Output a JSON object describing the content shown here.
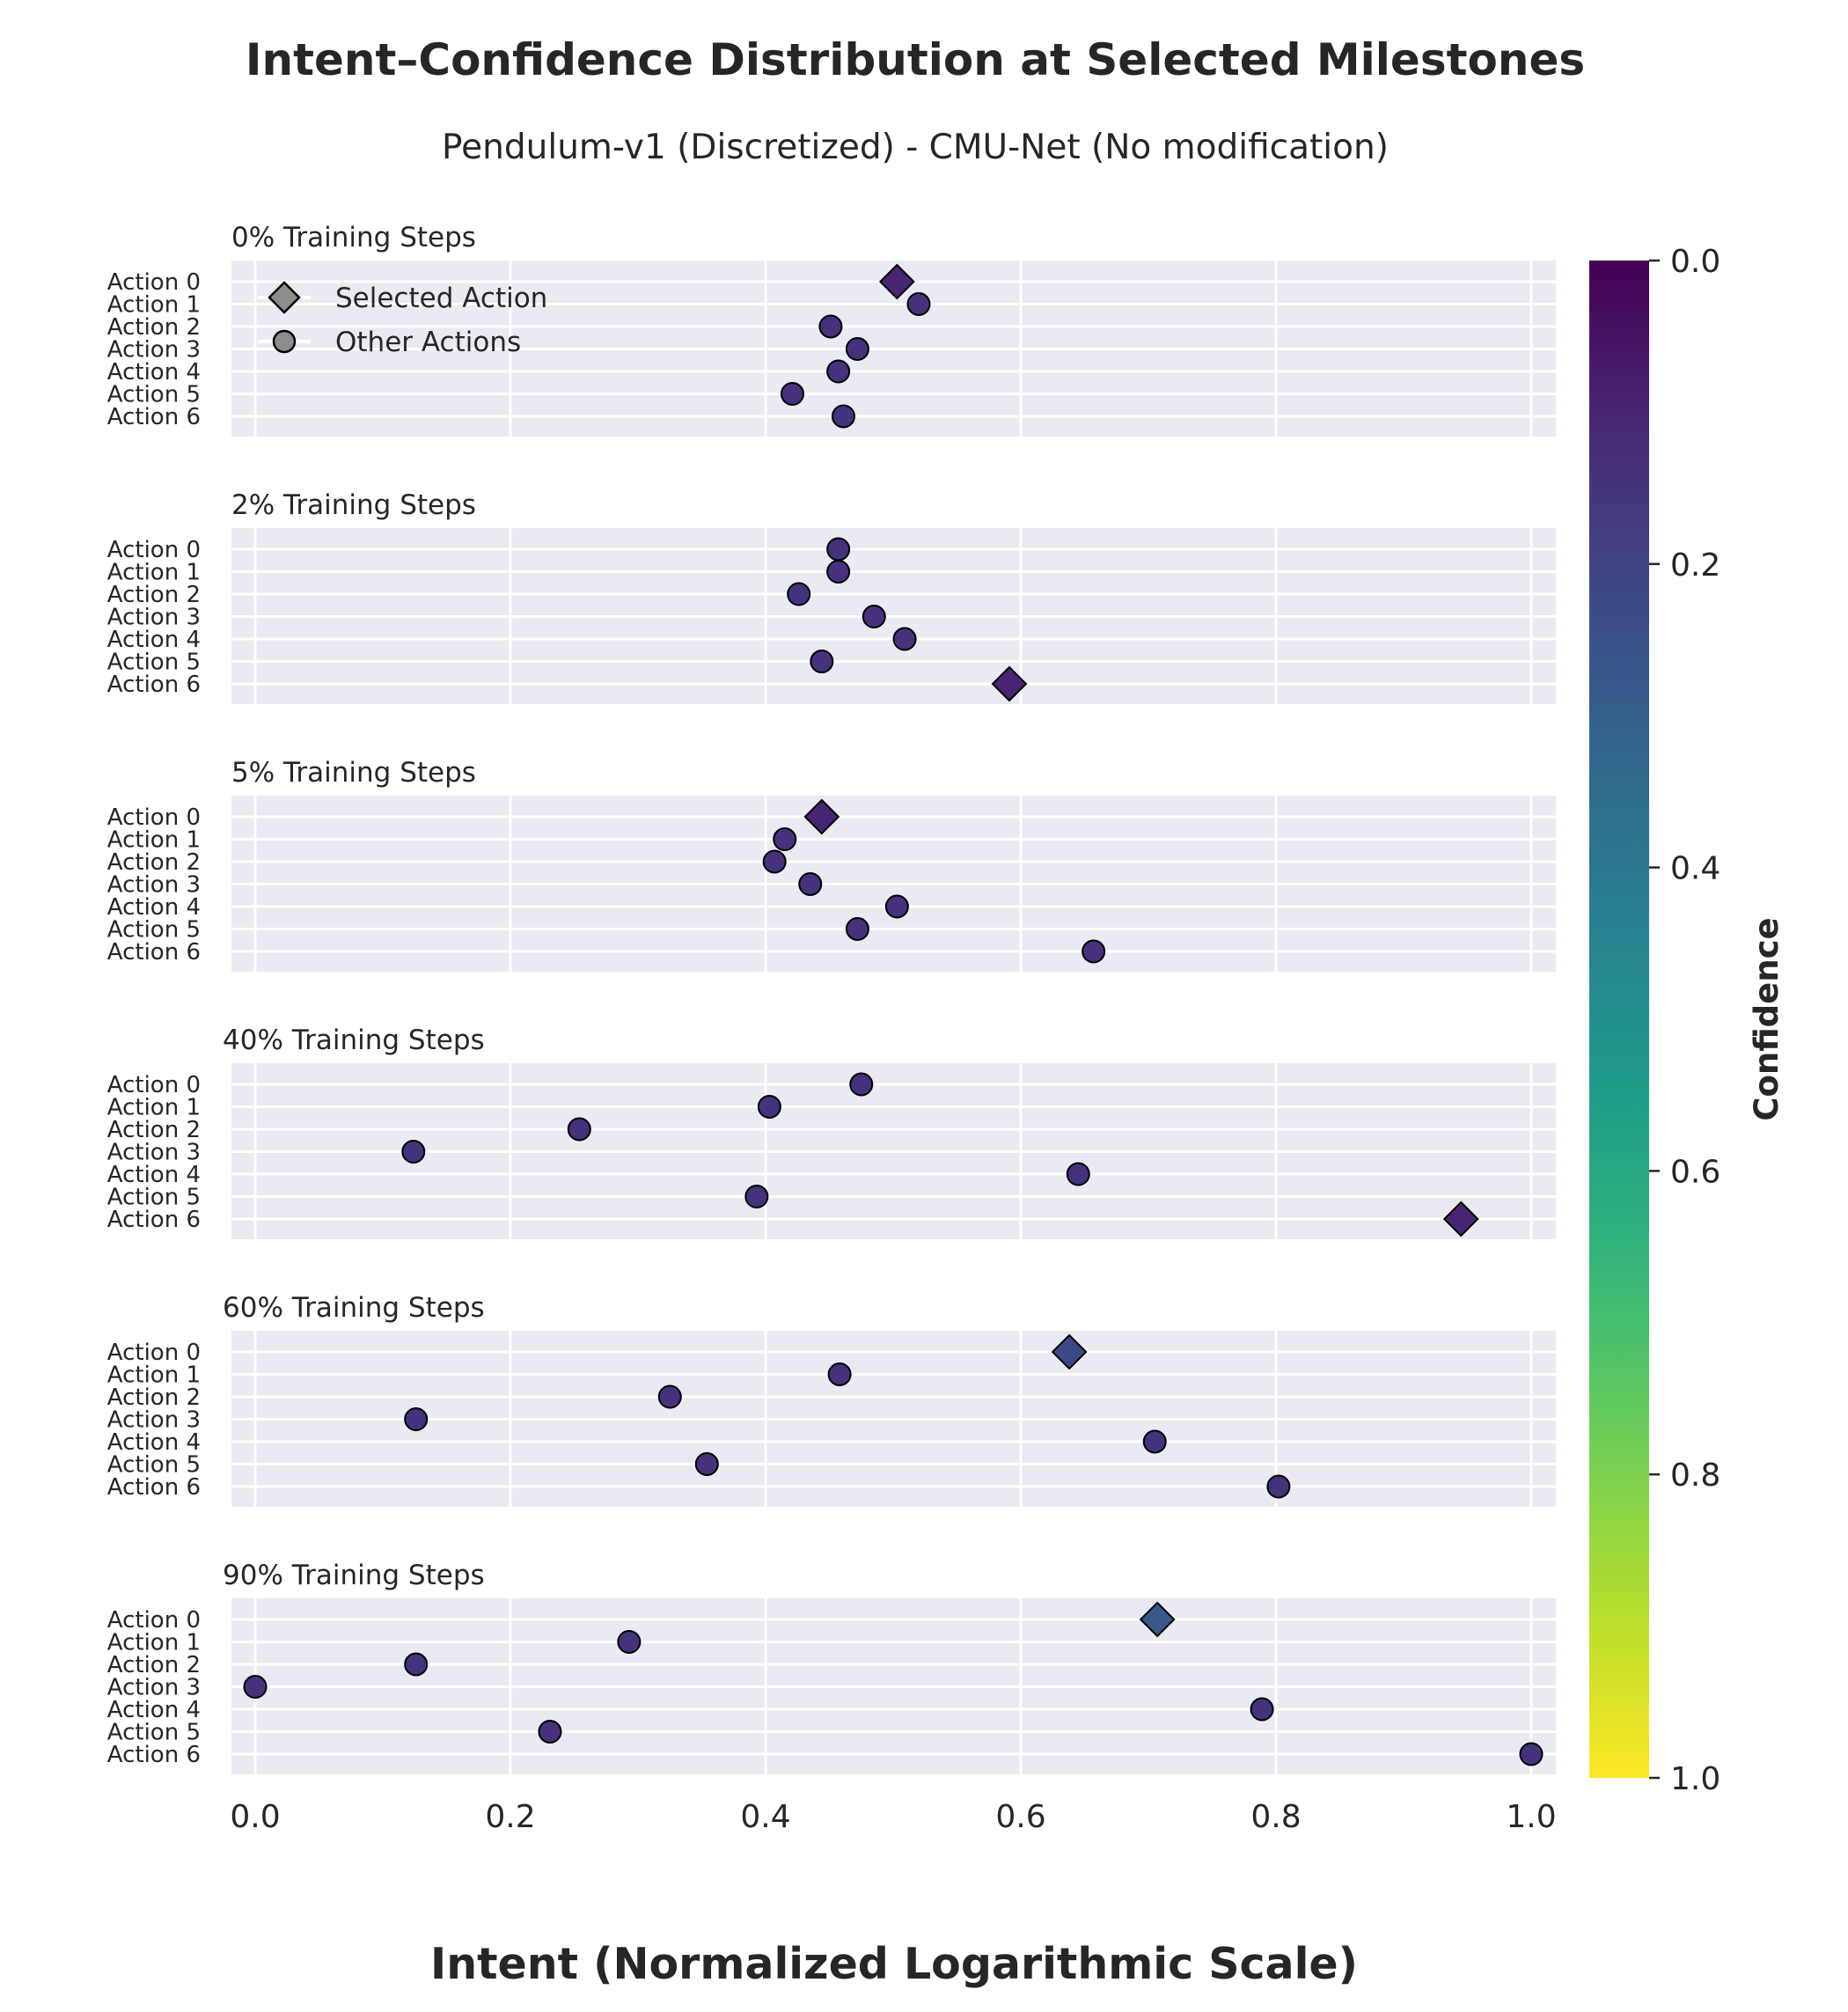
{
  "chart_data": {
    "type": "scatter",
    "title": "Intent–Confidence Distribution at Selected Milestones",
    "subtitle": "Pendulum-v1 (Discretized) - CMU-Net (No modification)",
    "xlabel": "Intent (Normalized Logarithmic Scale)",
    "xlim": [
      0.0,
      1.0
    ],
    "x_ticks": [
      "0.0",
      "0.2",
      "0.4",
      "0.6",
      "0.8",
      "1.0"
    ],
    "x_tick_values": [
      0.0,
      0.2,
      0.4,
      0.6,
      0.8,
      1.0
    ],
    "grid": true,
    "actions": [
      "Action 0",
      "Action 1",
      "Action 2",
      "Action 3",
      "Action 4",
      "Action 5",
      "Action 6"
    ],
    "legend": {
      "placement": "upper-left of first panel",
      "entries": [
        {
          "marker": "diamond",
          "label": "Selected Action"
        },
        {
          "marker": "circle",
          "label": "Other Actions"
        }
      ]
    },
    "colorbar": {
      "label": "Confidence",
      "colormap": "viridis (reversed)",
      "range": [
        0.0,
        1.0
      ],
      "ticks": [
        "0.0",
        "0.2",
        "0.4",
        "0.6",
        "0.8",
        "1.0"
      ],
      "tick_values": [
        0.0,
        0.2,
        0.4,
        0.6,
        0.8,
        1.0
      ]
    },
    "panels": [
      {
        "title": "0% Training Steps",
        "selected_action": 0,
        "intent": [
          0.503,
          0.52,
          0.451,
          0.472,
          0.457,
          0.421,
          0.461
        ],
        "confidence": [
          0.1,
          0.14,
          0.14,
          0.14,
          0.14,
          0.14,
          0.14
        ]
      },
      {
        "title": "2% Training Steps",
        "selected_action": 6,
        "intent": [
          0.457,
          0.457,
          0.426,
          0.485,
          0.509,
          0.444,
          0.591
        ],
        "confidence": [
          0.14,
          0.14,
          0.14,
          0.14,
          0.14,
          0.14,
          0.1
        ]
      },
      {
        "title": "5% Training Steps",
        "selected_action": 0,
        "intent": [
          0.444,
          0.415,
          0.407,
          0.435,
          0.503,
          0.472,
          0.657
        ],
        "confidence": [
          0.1,
          0.14,
          0.14,
          0.14,
          0.14,
          0.14,
          0.14
        ]
      },
      {
        "title": "40% Training Steps",
        "selected_action": 6,
        "intent": [
          0.475,
          0.403,
          0.254,
          0.124,
          0.645,
          0.393,
          0.945
        ],
        "confidence": [
          0.14,
          0.14,
          0.14,
          0.14,
          0.14,
          0.14,
          0.1
        ]
      },
      {
        "title": "60% Training Steps",
        "selected_action": 0,
        "intent": [
          0.638,
          0.458,
          0.325,
          0.126,
          0.705,
          0.354,
          0.802
        ],
        "confidence": [
          0.22,
          0.14,
          0.14,
          0.14,
          0.14,
          0.14,
          0.14
        ]
      },
      {
        "title": "90% Training Steps",
        "selected_action": 0,
        "intent": [
          0.707,
          0.293,
          0.126,
          0.0,
          0.789,
          0.231,
          1.0
        ],
        "confidence": [
          0.28,
          0.14,
          0.14,
          0.14,
          0.14,
          0.14,
          0.14
        ]
      }
    ]
  }
}
